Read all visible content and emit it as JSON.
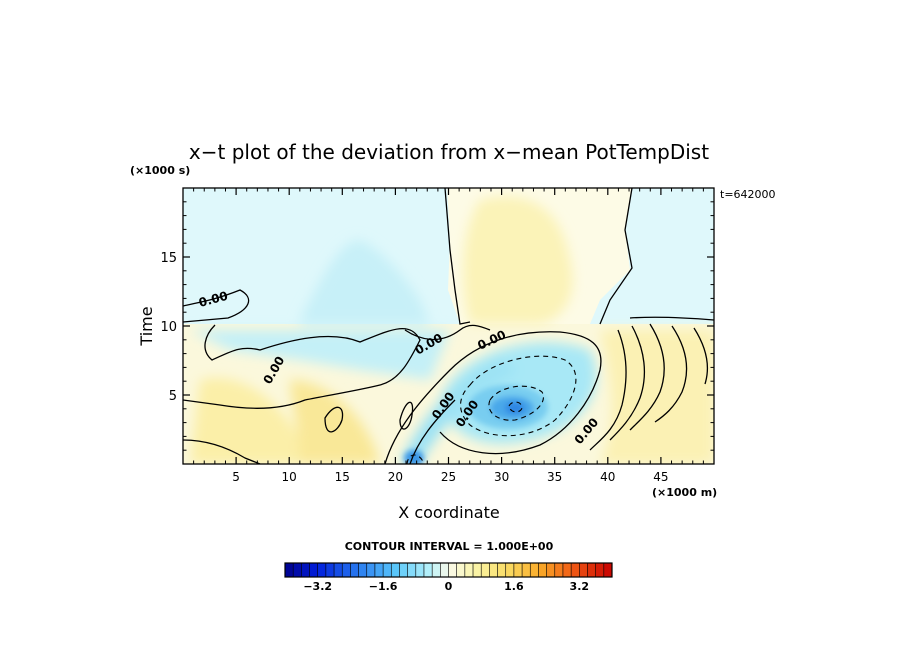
{
  "chart_data": {
    "type": "heatmap",
    "title": "x−t plot of the deviation from x−mean PotTempDist",
    "xlabel": "X coordinate",
    "ylabel": "Time",
    "x_unit": "(×1000 m)",
    "y_unit": "(×1000 s)",
    "time_stamp": "t=642000",
    "xlim": [
      0,
      50
    ],
    "ylim": [
      0,
      20
    ],
    "x_ticks": [
      5,
      10,
      15,
      20,
      25,
      30,
      35,
      40,
      45
    ],
    "y_ticks": [
      5,
      10,
      15
    ],
    "x_tick_labels": [
      "5",
      "10",
      "15",
      "20",
      "25",
      "30",
      "35",
      "40",
      "45"
    ],
    "y_tick_labels": [
      "5",
      "10",
      "15"
    ],
    "contour_label": "0.00",
    "contour_interval_text": "CONTOUR INTERVAL = 1.000E+00",
    "colorbar": {
      "min": -4.0,
      "max": 4.0,
      "step": 0.2,
      "tick_values": [
        -3.2,
        -1.6,
        0,
        1.6,
        3.2
      ],
      "tick_labels": [
        "−3.2",
        "−1.6",
        "0",
        "1.6",
        "3.2"
      ]
    },
    "features": [
      {
        "kind": "min",
        "x": 31,
        "y": 4.0,
        "value": -2.6
      },
      {
        "kind": "min",
        "x": 21.5,
        "y": 0.3,
        "value": -1.6
      },
      {
        "kind": "max",
        "x": 15,
        "y": 3.5,
        "value": 1.0
      },
      {
        "kind": "max",
        "x": 22,
        "y": 4.0,
        "value": 1.0
      },
      {
        "kind": "max",
        "x": 44,
        "y": 6.0,
        "value": 1.0
      }
    ],
    "grid": false
  }
}
